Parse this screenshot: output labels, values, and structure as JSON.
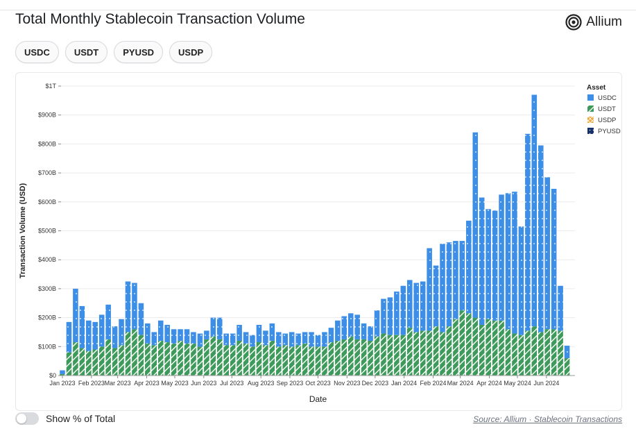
{
  "title": "Total Monthly Stablecoin Transaction Volume",
  "brand": {
    "name": "Allium",
    "icon": "allium-logo-icon"
  },
  "filters": [
    "USDC",
    "USDT",
    "PYUSD",
    "USDP"
  ],
  "toggle": {
    "label": "Show % of Total",
    "on": false
  },
  "source": {
    "label": "Source: Allium · Stablecoin Transactions"
  },
  "colors": {
    "USDC": "#3d8ee6",
    "USDT": "#3e9a5a",
    "USDP": "#f0a63a",
    "PYUSD": "#15306b",
    "grid": "#ececec",
    "axis": "#333333"
  },
  "chart_data": {
    "type": "bar",
    "stacked": true,
    "xlabel": "Date",
    "ylabel": "Transaction Volume (USD)",
    "unit": "billion USD",
    "ylim": [
      0,
      1000
    ],
    "yticks": [
      0,
      100,
      200,
      300,
      400,
      500,
      600,
      700,
      800,
      900,
      1000
    ],
    "ytick_labels": [
      "$0",
      "$100B",
      "$200B",
      "$300B",
      "$400B",
      "$500B",
      "$600B",
      "$700B",
      "$800B",
      "$900B",
      "$1T"
    ],
    "xticks": [
      {
        "label": "Jan 2023",
        "date": "2023-01-01"
      },
      {
        "label": "Feb 2023",
        "date": "2023-02-01"
      },
      {
        "label": "Mar 2023",
        "date": "2023-03-01"
      },
      {
        "label": "Apr 2023",
        "date": "2023-04-01"
      },
      {
        "label": "May 2023",
        "date": "2023-05-01"
      },
      {
        "label": "Jun 2023",
        "date": "2023-06-01"
      },
      {
        "label": "Jul 2023",
        "date": "2023-07-01"
      },
      {
        "label": "Aug 2023",
        "date": "2023-08-01"
      },
      {
        "label": "Sep 2023",
        "date": "2023-09-01"
      },
      {
        "label": "Oct 2023",
        "date": "2023-10-01"
      },
      {
        "label": "Nov 2023",
        "date": "2023-11-01"
      },
      {
        "label": "Dec 2023",
        "date": "2023-12-01"
      },
      {
        "label": "Jan 2024",
        "date": "2024-01-01"
      },
      {
        "label": "Feb 2024",
        "date": "2024-02-01"
      },
      {
        "label": "Mar 2024",
        "date": "2024-03-01"
      },
      {
        "label": "Apr 2024",
        "date": "2024-04-01"
      },
      {
        "label": "May 2024",
        "date": "2024-05-01"
      },
      {
        "label": "Jun 2024",
        "date": "2024-06-01"
      }
    ],
    "legend": {
      "title": "Asset",
      "position": "right",
      "items": [
        "USDC",
        "USDT",
        "USDP",
        "PYUSD"
      ]
    },
    "x": [
      "2023-01-01",
      "2023-01-08",
      "2023-01-15",
      "2023-01-22",
      "2023-01-29",
      "2023-02-05",
      "2023-02-12",
      "2023-02-19",
      "2023-02-26",
      "2023-03-05",
      "2023-03-12",
      "2023-03-19",
      "2023-03-26",
      "2023-04-02",
      "2023-04-09",
      "2023-04-16",
      "2023-04-23",
      "2023-04-30",
      "2023-05-07",
      "2023-05-14",
      "2023-05-21",
      "2023-05-28",
      "2023-06-04",
      "2023-06-11",
      "2023-06-18",
      "2023-06-25",
      "2023-07-02",
      "2023-07-09",
      "2023-07-16",
      "2023-07-23",
      "2023-07-30",
      "2023-08-06",
      "2023-08-13",
      "2023-08-20",
      "2023-08-27",
      "2023-09-03",
      "2023-09-10",
      "2023-09-17",
      "2023-09-24",
      "2023-10-01",
      "2023-10-08",
      "2023-10-15",
      "2023-10-22",
      "2023-10-29",
      "2023-11-05",
      "2023-11-12",
      "2023-11-19",
      "2023-11-26",
      "2023-12-03",
      "2023-12-10",
      "2023-12-17",
      "2023-12-24",
      "2023-12-31",
      "2024-01-07",
      "2024-01-14",
      "2024-01-21",
      "2024-01-28",
      "2024-02-04",
      "2024-02-11",
      "2024-02-18",
      "2024-02-25",
      "2024-03-03",
      "2024-03-10",
      "2024-03-17",
      "2024-03-24",
      "2024-03-31",
      "2024-04-07",
      "2024-04-14",
      "2024-04-21",
      "2024-04-28",
      "2024-05-05",
      "2024-05-12",
      "2024-05-19",
      "2024-05-26",
      "2024-06-02",
      "2024-06-09",
      "2024-06-16",
      "2024-06-23",
      "2024-06-30"
    ],
    "series": [
      {
        "name": "USDT",
        "values": [
          5,
          80,
          115,
          95,
          85,
          90,
          100,
          125,
          95,
          105,
          150,
          160,
          140,
          110,
          105,
          120,
          115,
          110,
          120,
          110,
          110,
          100,
          125,
          135,
          125,
          105,
          105,
          120,
          110,
          100,
          115,
          105,
          120,
          100,
          105,
          100,
          105,
          110,
          100,
          100,
          100,
          115,
          120,
          125,
          135,
          125,
          125,
          120,
          135,
          145,
          140,
          140,
          140,
          165,
          150,
          155,
          155,
          170,
          150,
          170,
          195,
          225,
          215,
          200,
          175,
          195,
          190,
          190,
          160,
          145,
          140,
          155,
          170,
          150,
          160,
          160,
          155,
          60,
          0
        ]
      },
      {
        "name": "USDC",
        "values": [
          13,
          105,
          185,
          145,
          105,
          95,
          110,
          120,
          75,
          90,
          175,
          160,
          110,
          70,
          45,
          70,
          60,
          50,
          40,
          50,
          40,
          45,
          30,
          65,
          75,
          40,
          40,
          55,
          40,
          40,
          60,
          50,
          60,
          50,
          40,
          50,
          40,
          40,
          50,
          40,
          50,
          50,
          70,
          80,
          80,
          85,
          55,
          50,
          90,
          120,
          130,
          150,
          170,
          165,
          170,
          170,
          285,
          210,
          305,
          290,
          270,
          240,
          320,
          640,
          440,
          380,
          380,
          435,
          470,
          490,
          375,
          680,
          800,
          645,
          525,
          485,
          155,
          43,
          0
        ]
      },
      {
        "name": "USDP",
        "values": [
          0,
          0,
          0,
          0,
          0,
          0,
          0,
          0,
          0,
          0,
          0,
          0,
          0,
          0,
          0,
          0,
          0,
          0,
          0,
          0,
          0,
          0,
          0,
          0,
          0,
          0,
          0,
          0,
          0,
          0,
          0,
          0,
          0,
          0,
          0,
          0,
          0,
          0,
          0,
          0,
          0,
          0,
          0,
          0,
          0,
          0,
          0,
          0,
          0,
          0,
          0,
          0,
          0,
          0,
          0,
          0,
          0,
          0,
          0,
          0,
          0,
          0,
          0,
          0,
          0,
          0,
          0,
          0,
          0,
          0,
          0,
          0,
          0,
          0,
          0,
          0,
          0,
          0,
          0
        ]
      },
      {
        "name": "PYUSD",
        "values": [
          0,
          0,
          0,
          0,
          0,
          0,
          0,
          0,
          0,
          0,
          0,
          0,
          0,
          0,
          0,
          0,
          0,
          0,
          0,
          0,
          0,
          0,
          0,
          0,
          0,
          0,
          0,
          0,
          0,
          0,
          0,
          0,
          0,
          0,
          0,
          0,
          0,
          0,
          0,
          0,
          0,
          0,
          0,
          0,
          0,
          0,
          0,
          0,
          0,
          0,
          0,
          0,
          0,
          0,
          0,
          0,
          0,
          0,
          0,
          0,
          0,
          0,
          0,
          0,
          0,
          0,
          0,
          0,
          0,
          0,
          0,
          0,
          0,
          0,
          0,
          0,
          0,
          0,
          0
        ]
      }
    ]
  }
}
